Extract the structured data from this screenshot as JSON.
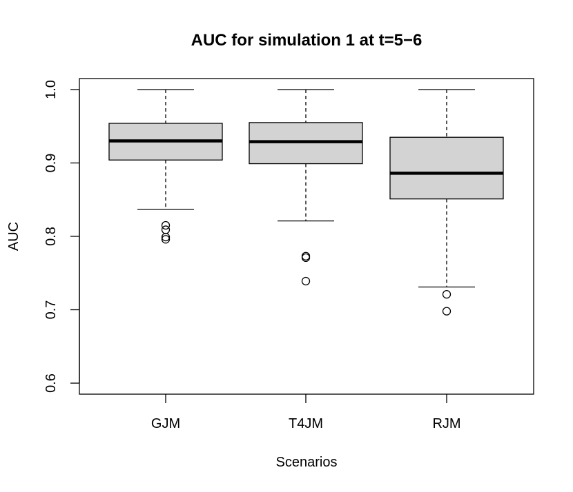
{
  "chart_data": {
    "type": "boxplot",
    "title": "AUC for simulation 1 at t=5−6",
    "xlabel": "Scenarios",
    "ylabel": "AUC",
    "ylim": [
      0.585,
      1.015
    ],
    "yticks": [
      "0.6",
      "0.7",
      "0.8",
      "0.9",
      "1.0"
    ],
    "categories": [
      "GJM",
      "T4JM",
      "RJM"
    ],
    "boxes": [
      {
        "name": "GJM",
        "whisker_low": 0.837,
        "q1": 0.904,
        "median": 0.93,
        "q3": 0.954,
        "whisker_high": 1.0,
        "outliers": [
          0.815,
          0.809,
          0.799,
          0.796
        ]
      },
      {
        "name": "T4JM",
        "whisker_low": 0.821,
        "q1": 0.899,
        "median": 0.929,
        "q3": 0.955,
        "whisker_high": 1.0,
        "outliers": [
          0.773,
          0.771,
          0.739
        ]
      },
      {
        "name": "RJM",
        "whisker_low": 0.731,
        "q1": 0.851,
        "median": 0.886,
        "q3": 0.935,
        "whisker_high": 1.0,
        "outliers": [
          0.721,
          0.698
        ]
      }
    ],
    "box_fill": "#d3d3d3",
    "grid": false
  }
}
